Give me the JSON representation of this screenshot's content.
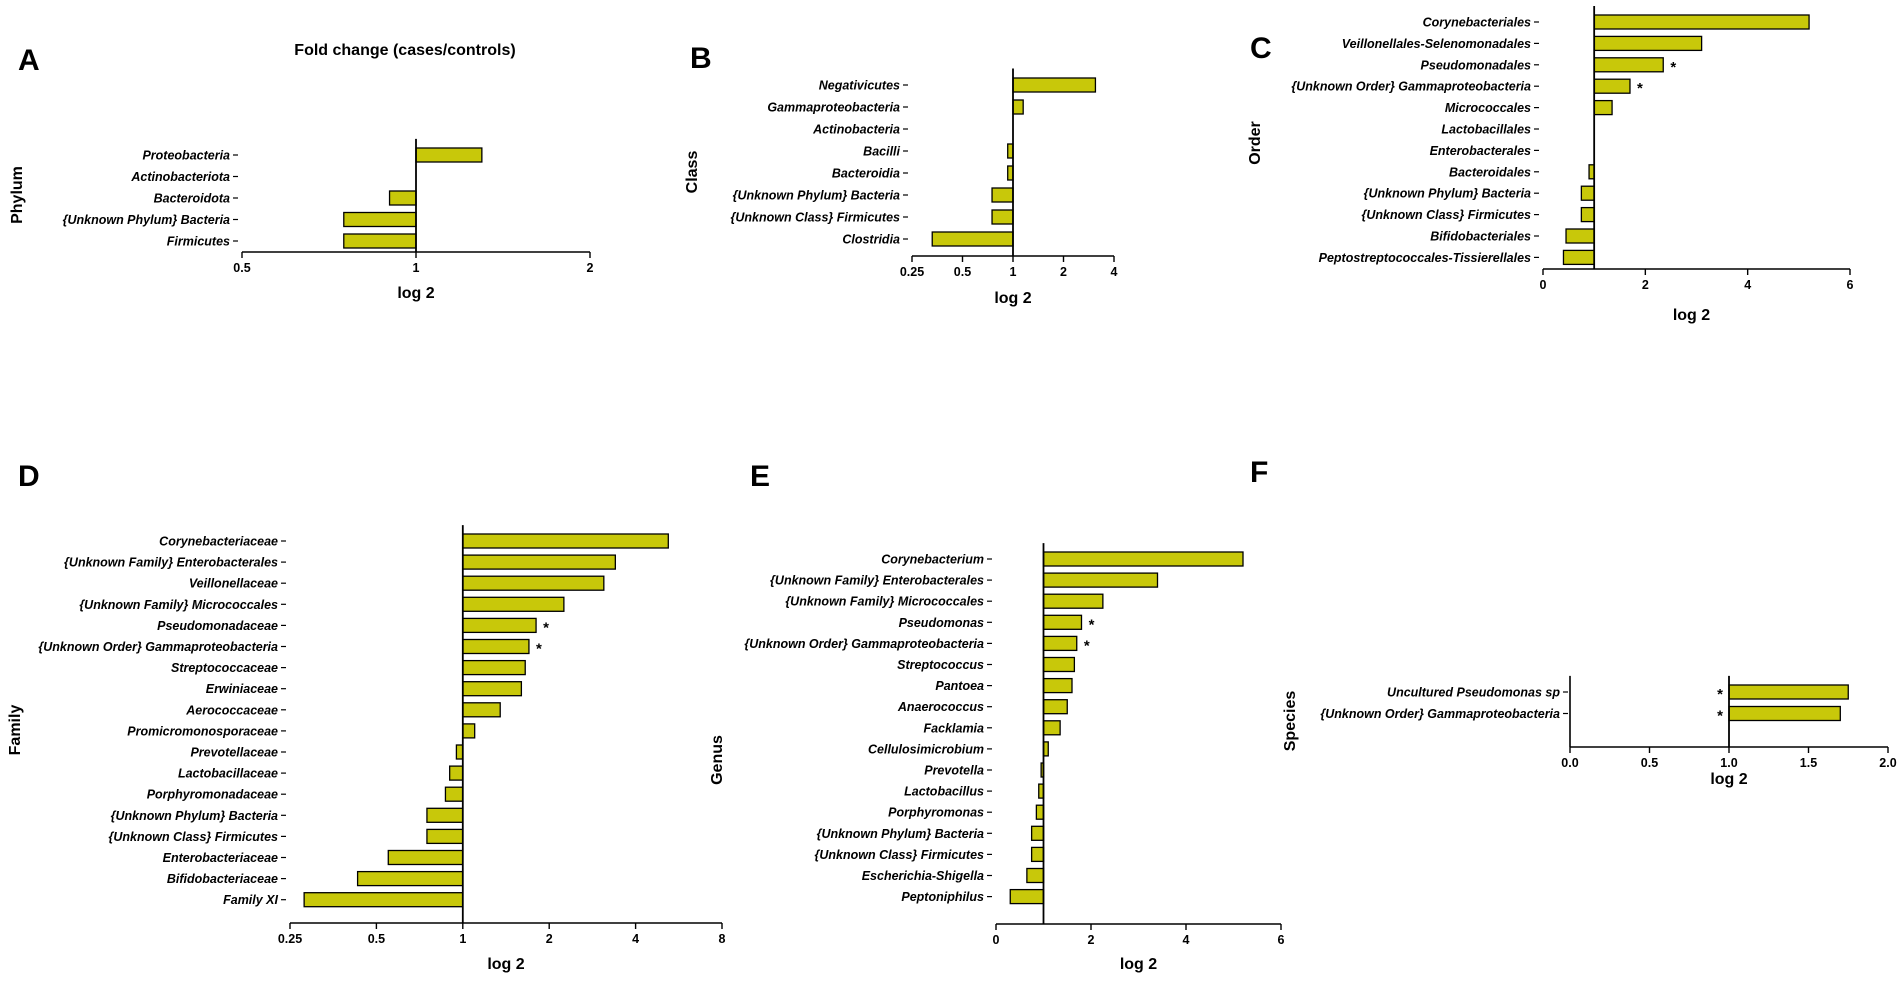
{
  "figure_title": "Fold change (cases/controls)",
  "colors": {
    "bar": "#c8c80a",
    "stroke": "#000000"
  },
  "chart_data": [
    {
      "id": "A",
      "panel_label": "A",
      "type": "bar",
      "orientation": "horizontal",
      "scale": "log2",
      "ylabel": "Phylum",
      "xlabel": "log 2",
      "title": "Fold change (cases/controls)",
      "xlim": [
        0.5,
        2
      ],
      "ticks": [
        0.5,
        1,
        2
      ],
      "tick_labels": [
        "0.5",
        "1",
        "2"
      ],
      "categories": [
        "Proteobacteria",
        "Actinobacteriota",
        "Bacteroidota",
        "{Unknown Phylum} Bacteria",
        "Firmicutes"
      ],
      "values": [
        1.3,
        1.0,
        0.9,
        0.75,
        0.75
      ],
      "significant": [
        false,
        false,
        false,
        false,
        false
      ]
    },
    {
      "id": "B",
      "panel_label": "B",
      "type": "bar",
      "orientation": "horizontal",
      "scale": "log2",
      "ylabel": "Class",
      "xlabel": "log 2",
      "xlim": [
        0.25,
        4
      ],
      "ticks": [
        0.25,
        0.5,
        1,
        2,
        4
      ],
      "tick_labels": [
        "0.25",
        "0.5",
        "1",
        "2",
        "4"
      ],
      "categories": [
        "Negativicutes",
        "Gammaproteobacteria",
        "Actinobacteria",
        "Bacilli",
        "Bacteroidia",
        "{Unknown Phylum} Bacteria",
        "{Unknown Class} Firmicutes",
        "Clostridia"
      ],
      "values": [
        3.1,
        1.15,
        1.0,
        0.93,
        0.93,
        0.75,
        0.75,
        0.33
      ],
      "significant": [
        false,
        false,
        false,
        false,
        false,
        false,
        false,
        false
      ]
    },
    {
      "id": "C",
      "panel_label": "C",
      "type": "bar",
      "orientation": "horizontal",
      "scale": "linear",
      "ylabel": "Order",
      "xlabel": "log 2",
      "xlim": [
        0,
        6
      ],
      "ticks": [
        0,
        2,
        4,
        6
      ],
      "tick_labels": [
        "0",
        "2",
        "4",
        "6"
      ],
      "categories": [
        "Corynebacteriales",
        "Veillonellales-Selenomonadales",
        "Pseudomonadales",
        "{Unknown Order} Gammaproteobacteria",
        "Micrococcales",
        "Lactobacillales",
        "Enterobacterales",
        "Bacteroidales",
        "{Unknown Phylum} Bacteria",
        "{Unknown Class} Firmicutes",
        "Bifidobacteriales",
        "Peptostreptococcales-Tissierellales"
      ],
      "values": [
        5.2,
        3.1,
        2.35,
        1.7,
        1.35,
        1.0,
        1.0,
        0.9,
        0.75,
        0.75,
        0.45,
        0.4
      ],
      "significant": [
        false,
        false,
        true,
        true,
        false,
        false,
        false,
        false,
        false,
        false,
        false,
        false
      ],
      "star": "*"
    },
    {
      "id": "D",
      "panel_label": "D",
      "type": "bar",
      "orientation": "horizontal",
      "scale": "log2",
      "ylabel": "Family",
      "xlabel": "log 2",
      "xlim": [
        0.25,
        8
      ],
      "ticks": [
        0.25,
        0.5,
        1,
        2,
        4,
        8
      ],
      "tick_labels": [
        "0.25",
        "0.5",
        "1",
        "2",
        "4",
        "8"
      ],
      "categories": [
        "Corynebacteriaceae",
        "{Unknown Family} Enterobacterales",
        "Veillonellaceae",
        "{Unknown Family} Micrococcales",
        "Pseudomonadaceae",
        "{Unknown Order} Gammaproteobacteria",
        "Streptococcaceae",
        "Erwiniaceae",
        "Aerococcaceae",
        "Promicromonosporaceae",
        "Prevotellaceae",
        "Lactobacillaceae",
        "Porphyromonadaceae",
        "{Unknown Phylum} Bacteria",
        "{Unknown Class} Firmicutes",
        "Enterobacteriaceae",
        "Bifidobacteriaceae",
        "Family XI"
      ],
      "values": [
        5.2,
        3.4,
        3.1,
        2.25,
        1.8,
        1.7,
        1.65,
        1.6,
        1.35,
        1.1,
        0.95,
        0.9,
        0.87,
        0.75,
        0.75,
        0.55,
        0.43,
        0.28
      ],
      "significant": [
        false,
        false,
        false,
        false,
        true,
        true,
        false,
        false,
        false,
        false,
        false,
        false,
        false,
        false,
        false,
        false,
        false,
        false
      ],
      "star": "*"
    },
    {
      "id": "E",
      "panel_label": "E",
      "type": "bar",
      "orientation": "horizontal",
      "scale": "linear",
      "ylabel": "Genus",
      "xlabel": "log 2",
      "xlim": [
        0,
        6
      ],
      "ticks": [
        0,
        2,
        4,
        6
      ],
      "tick_labels": [
        "0",
        "2",
        "4",
        "6"
      ],
      "categories": [
        "Corynebacterium",
        "{Unknown Family} Enterobacterales",
        "{Unknown Family} Micrococcales",
        "Pseudomonas",
        "{Unknown Order} Gammaproteobacteria",
        "Streptococcus",
        "Pantoea",
        "Anaerococcus",
        "Facklamia",
        "Cellulosimicrobium",
        "Prevotella",
        "Lactobacillus",
        "Porphyromonas",
        "{Unknown Phylum} Bacteria",
        "{Unknown Class} Firmicutes",
        "Escherichia-Shigella",
        "Peptoniphilus"
      ],
      "values": [
        5.2,
        3.4,
        2.25,
        1.8,
        1.7,
        1.65,
        1.6,
        1.5,
        1.35,
        1.1,
        0.95,
        0.9,
        0.85,
        0.75,
        0.75,
        0.65,
        0.3
      ],
      "significant": [
        false,
        false,
        false,
        true,
        true,
        false,
        false,
        false,
        false,
        false,
        false,
        false,
        false,
        false,
        false,
        false,
        false
      ],
      "star": "*"
    },
    {
      "id": "F",
      "panel_label": "F",
      "type": "bar",
      "orientation": "horizontal",
      "scale": "linear",
      "ylabel": "Species",
      "xlabel": "log 2",
      "xlim": [
        0,
        2
      ],
      "ticks": [
        0,
        0.5,
        1,
        1.5,
        2
      ],
      "tick_labels": [
        "0.0",
        "0.5",
        "1.0",
        "1.5",
        "2.0"
      ],
      "categories": [
        "Uncultured Pseudomonas sp",
        "{Unknown Order} Gammaproteobacteria"
      ],
      "values": [
        1.75,
        1.7
      ],
      "significant": [
        true,
        true
      ],
      "star": "*",
      "star_side": "left"
    }
  ]
}
